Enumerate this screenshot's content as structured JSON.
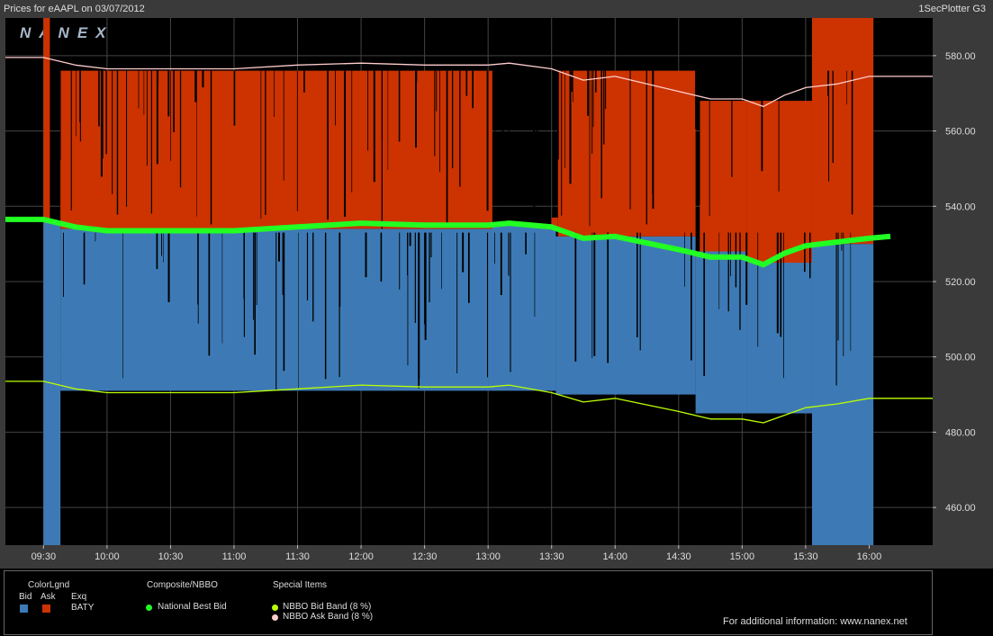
{
  "header": {
    "title": "Prices for  eAAPL  on  03/07/2012",
    "app_name": "1SecPlotter G3",
    "watermark": "NANEX"
  },
  "colors": {
    "bid": "#3d7ab5",
    "ask": "#cc3300",
    "national_best_bid": "#22ff22",
    "nbbo_bid_band": "#bbff00",
    "nbbo_ask_band": "#ffcccc"
  },
  "legend": {
    "color_legend_title": "ColorLgnd",
    "bid_label": "Bid",
    "ask_label": "Ask",
    "exq_label": "Exq",
    "exq_value": "BATY",
    "composite_title": "Composite/NBBO",
    "national_best_bid_label": "National Best Bid",
    "special_title": "Special Items",
    "nbbo_bid_band_label": "NBBO Bid Band (8 %)",
    "nbbo_ask_band_label": "NBBO Ask Band (8 %)",
    "info_text": "For additional information: www.nanex.net"
  },
  "chart_data": {
    "type": "line",
    "ylim": [
      450,
      590
    ],
    "yticks": [
      460,
      480,
      500,
      520,
      540,
      560,
      580
    ],
    "ytick_labels": [
      "460.00",
      "480.00",
      "500.00",
      "520.00",
      "540.00",
      "560.00",
      "580.00"
    ],
    "xlim": [
      "09:12",
      "16:30"
    ],
    "xticks": [
      "09:30",
      "10:00",
      "10:30",
      "11:00",
      "11:30",
      "12:00",
      "12:30",
      "13:00",
      "13:30",
      "14:00",
      "14:30",
      "15:00",
      "15:30",
      "16:00"
    ],
    "grid": true,
    "series": [
      {
        "name": "National Best Bid",
        "x": [
          "09:12",
          "09:30",
          "09:45",
          "10:00",
          "10:30",
          "11:00",
          "11:30",
          "12:00",
          "12:30",
          "13:00",
          "13:10",
          "13:30",
          "13:45",
          "14:00",
          "14:30",
          "14:45",
          "15:00",
          "15:10",
          "15:20",
          "15:30",
          "15:45",
          "16:00",
          "16:10"
        ],
        "values": [
          536.5,
          536.5,
          534.5,
          533.5,
          533.5,
          533.5,
          534.5,
          535.5,
          535,
          535,
          535.5,
          534.5,
          531.5,
          532,
          528.5,
          526.5,
          526.5,
          524.5,
          527.5,
          529.5,
          530.5,
          531.5,
          532
        ]
      },
      {
        "name": "NBBO Ask Band (8 %)",
        "x": [
          "09:12",
          "09:30",
          "09:45",
          "10:00",
          "10:30",
          "11:00",
          "11:30",
          "12:00",
          "12:30",
          "13:00",
          "13:10",
          "13:30",
          "13:45",
          "14:00",
          "14:30",
          "14:45",
          "15:00",
          "15:10",
          "15:20",
          "15:30",
          "15:45",
          "16:00",
          "16:30"
        ],
        "values": [
          579.5,
          579.5,
          577.5,
          576.5,
          576.5,
          576.5,
          577.5,
          578,
          577.5,
          577.5,
          578,
          576.5,
          573.5,
          574.5,
          570.5,
          568.5,
          568.5,
          566.5,
          569.5,
          571.5,
          572.5,
          574.5,
          574.5
        ]
      },
      {
        "name": "NBBO Bid Band (8 %)",
        "x": [
          "09:12",
          "09:30",
          "09:45",
          "10:00",
          "10:30",
          "11:00",
          "11:30",
          "12:00",
          "12:30",
          "13:00",
          "13:10",
          "13:30",
          "13:45",
          "14:00",
          "14:30",
          "14:45",
          "15:00",
          "15:10",
          "15:20",
          "15:30",
          "15:45",
          "16:00",
          "16:30"
        ],
        "values": [
          493.5,
          493.5,
          491.5,
          490.5,
          490.5,
          490.5,
          491.5,
          492.5,
          492,
          492,
          492.5,
          490.5,
          488,
          489,
          485.5,
          483.5,
          483.5,
          482.5,
          484.5,
          486.5,
          487.5,
          489,
          489
        ]
      }
    ],
    "bid_blocks": [
      {
        "x0": "09:30",
        "x1": "09:38",
        "top": 536,
        "bottom": 450
      },
      {
        "x0": "09:38",
        "x1": "13:00",
        "top": 534,
        "bottom": 491
      },
      {
        "x0": "13:00",
        "x1": "13:32",
        "top": 535,
        "bottom": 491
      },
      {
        "x0": "13:32",
        "x1": "14:38",
        "top": 532,
        "bottom": 490
      },
      {
        "x0": "14:38",
        "x1": "15:02",
        "top": 528,
        "bottom": 485
      },
      {
        "x0": "15:02",
        "x1": "15:33",
        "top": 526,
        "bottom": 485
      },
      {
        "x0": "15:33",
        "x1": "16:02",
        "top": 530,
        "bottom": 450
      }
    ],
    "ask_blocks": [
      {
        "x0": "09:30",
        "x1": "09:33",
        "top": 590,
        "bottom": 536
      },
      {
        "x0": "09:38",
        "x1": "13:02",
        "top": 576,
        "bottom": 534
      },
      {
        "x0": "13:30",
        "x1": "13:33",
        "top": 537,
        "bottom": 534
      },
      {
        "x0": "13:33",
        "x1": "14:38",
        "top": 576,
        "bottom": 532
      },
      {
        "x0": "14:40",
        "x1": "15:02",
        "top": 568,
        "bottom": 528
      },
      {
        "x0": "15:02",
        "x1": "15:33",
        "top": 568,
        "bottom": 525
      },
      {
        "x0": "15:33",
        "x1": "16:02",
        "top": 590,
        "bottom": 530
      }
    ]
  }
}
